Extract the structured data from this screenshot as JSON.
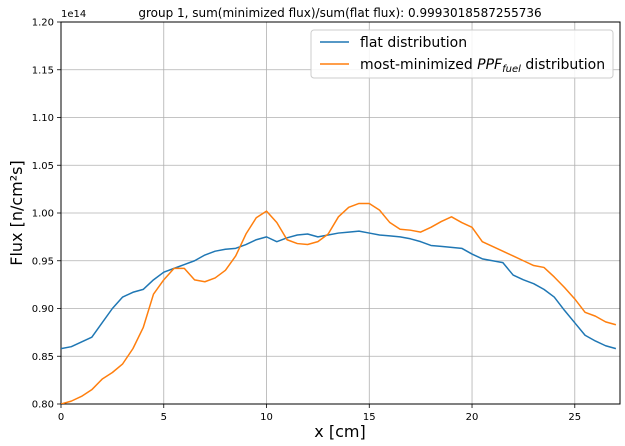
{
  "figure": {
    "title": "group 1, sum(minimized flux)/sum(flat flux): 0.9993018587255736",
    "offset_text": "1e14"
  },
  "chart_data": {
    "type": "line",
    "title": "group 1, sum(minimized flux)/sum(flat flux): 0.9993018587255736",
    "xlabel": "x [cm]",
    "ylabel": "Flux [n/cm²s]",
    "xlim": [
      0,
      27.2
    ],
    "ylim": [
      0.8,
      1.2
    ],
    "y_scale_factor": "1e14",
    "grid": true,
    "legend_position": "upper right",
    "x_ticks": [
      0,
      5,
      10,
      15,
      20,
      25
    ],
    "x_tick_labels": [
      "0",
      "5",
      "10",
      "15",
      "20",
      "25"
    ],
    "y_ticks": [
      0.8,
      0.85,
      0.9,
      0.95,
      1.0,
      1.05,
      1.1,
      1.15,
      1.2
    ],
    "y_tick_labels": [
      "0.80",
      "0.85",
      "0.90",
      "0.95",
      "1.00",
      "1.05",
      "1.10",
      "1.15",
      "1.20"
    ],
    "x": [
      0,
      0.5,
      1,
      1.5,
      2,
      2.5,
      3,
      3.5,
      4,
      4.5,
      5,
      5.5,
      6,
      6.5,
      7,
      7.5,
      8,
      8.5,
      9,
      9.5,
      10,
      10.5,
      11,
      11.5,
      12,
      12.5,
      13,
      13.5,
      14,
      14.5,
      15,
      15.5,
      16,
      16.5,
      17,
      17.5,
      18,
      18.5,
      19,
      19.5,
      20,
      20.5,
      21,
      21.5,
      22,
      22.5,
      23,
      23.5,
      24,
      24.5,
      25,
      25.5,
      26,
      26.5,
      27
    ],
    "series": [
      {
        "name": "flat distribution",
        "color": "#1f77b4",
        "values": [
          0.858,
          0.86,
          0.865,
          0.87,
          0.885,
          0.9,
          0.912,
          0.917,
          0.92,
          0.93,
          0.938,
          0.942,
          0.946,
          0.95,
          0.956,
          0.96,
          0.962,
          0.963,
          0.967,
          0.972,
          0.975,
          0.97,
          0.974,
          0.977,
          0.978,
          0.975,
          0.977,
          0.979,
          0.98,
          0.981,
          0.979,
          0.977,
          0.976,
          0.975,
          0.973,
          0.97,
          0.966,
          0.965,
          0.964,
          0.963,
          0.957,
          0.952,
          0.95,
          0.948,
          0.935,
          0.93,
          0.926,
          0.92,
          0.912,
          0.898,
          0.885,
          0.872,
          0.866,
          0.861,
          0.858
        ]
      },
      {
        "name": "most-minimized PPF_fuel distribution",
        "color": "#ff7f0e",
        "values": [
          0.8,
          0.803,
          0.808,
          0.815,
          0.826,
          0.833,
          0.842,
          0.858,
          0.88,
          0.915,
          0.93,
          0.942,
          0.942,
          0.93,
          0.928,
          0.932,
          0.94,
          0.955,
          0.978,
          0.995,
          1.002,
          0.99,
          0.972,
          0.968,
          0.967,
          0.97,
          0.978,
          0.996,
          1.006,
          1.01,
          1.01,
          1.003,
          0.99,
          0.983,
          0.982,
          0.98,
          0.985,
          0.991,
          0.996,
          0.99,
          0.985,
          0.97,
          0.965,
          0.96,
          0.955,
          0.95,
          0.945,
          0.943,
          0.933,
          0.922,
          0.91,
          0.896,
          0.892,
          0.886,
          0.883
        ]
      }
    ]
  }
}
